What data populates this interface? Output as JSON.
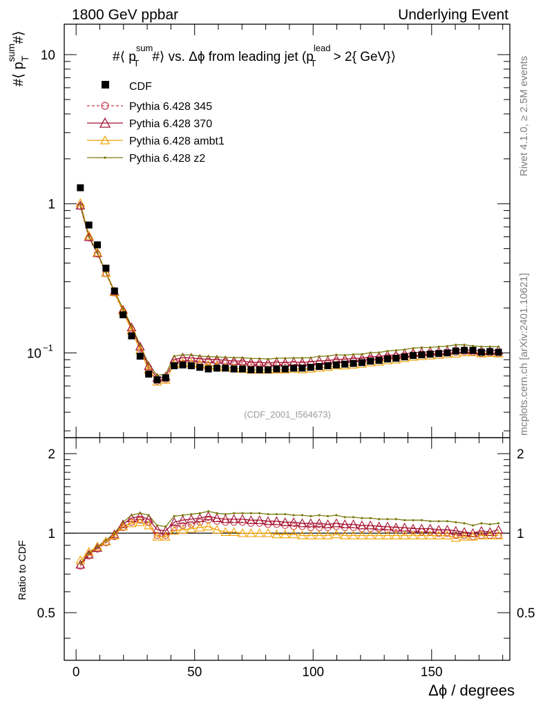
{
  "header": {
    "left": "1800 GeV ppbar",
    "right": "Underlying Event"
  },
  "side_labels": {
    "rivet": "Rivet 4.1.0, ≥ 2.5M events",
    "mcplots": "mcplots.cern.ch [arXiv:2401.10621]"
  },
  "chart_data": {
    "type": "line",
    "title": "#⟨ p_T^sum #⟩ vs. Δϕ from leading jet  (p_T^lead > 2{ GeV})",
    "title_parts": {
      "prefix": "#⟨ p",
      "sup1": "sum",
      "sub1": "T",
      "middle": "#⟩ vs. Δϕ from leading jet  (p",
      "sup2": "lead",
      "sub2": "T",
      "suffix": " > 2{ GeV}⟩"
    },
    "ylabel": {
      "prefix": "#⟨ p",
      "sup": "sum",
      "sub": "T",
      "suffix": "#⟩"
    },
    "xlabel": "Δϕ / degrees",
    "ratio_ylabel": "Ratio to CDF",
    "watermark": "(CDF_2001_I564673)",
    "scale": "log",
    "xlim": [
      -5,
      183
    ],
    "ylim": [
      0.027,
      16
    ],
    "ratio_ylim": [
      0.33,
      2.3
    ],
    "x_ticks": [
      "0",
      "50",
      "100",
      "150"
    ],
    "y_ticks": [
      {
        "base": "1",
        "exp": "0",
        "value": 10,
        "label": "10"
      },
      {
        "base": "1",
        "exp": "",
        "value": 1,
        "label": "1"
      },
      {
        "base": "10",
        "exp": "−1",
        "value": 0.1,
        "label": "10"
      }
    ],
    "ratio_ticks": [
      {
        "value": 2,
        "label": "2"
      },
      {
        "value": 1,
        "label": "1"
      },
      {
        "value": 0.5,
        "label": "0.5"
      }
    ],
    "x": [
      1.8,
      5.4,
      9.0,
      12.6,
      16.2,
      19.8,
      23.4,
      27.0,
      30.6,
      34.2,
      37.8,
      41.4,
      45.0,
      48.6,
      52.2,
      55.8,
      59.4,
      63.0,
      66.6,
      70.2,
      73.8,
      77.4,
      81.0,
      84.6,
      88.2,
      91.8,
      95.4,
      99.0,
      102.6,
      106.2,
      109.8,
      113.4,
      117.0,
      120.6,
      124.2,
      127.8,
      131.4,
      135.0,
      138.6,
      142.2,
      145.8,
      149.4,
      153.0,
      156.6,
      160.2,
      163.8,
      167.4,
      171.0,
      174.6,
      178.2
    ],
    "data_series": {
      "name": "CDF",
      "values": [
        1.28,
        0.72,
        0.53,
        0.37,
        0.26,
        0.18,
        0.13,
        0.095,
        0.072,
        0.066,
        0.068,
        0.082,
        0.083,
        0.082,
        0.08,
        0.078,
        0.079,
        0.079,
        0.078,
        0.078,
        0.077,
        0.077,
        0.077,
        0.078,
        0.078,
        0.079,
        0.079,
        0.08,
        0.081,
        0.082,
        0.083,
        0.084,
        0.085,
        0.086,
        0.088,
        0.089,
        0.091,
        0.092,
        0.094,
        0.096,
        0.097,
        0.098,
        0.099,
        0.1,
        0.103,
        0.104,
        0.104,
        0.101,
        0.102,
        0.101
      ]
    },
    "series": [
      {
        "name": "Pythia 6.428 345",
        "color": "#c2394a",
        "marker": "circle",
        "dashed": true,
        "ratios": [
          0.75,
          0.82,
          0.87,
          0.92,
          0.97,
          1.05,
          1.1,
          1.12,
          1.1,
          0.98,
          0.98,
          1.05,
          1.07,
          1.08,
          1.1,
          1.12,
          1.11,
          1.1,
          1.1,
          1.1,
          1.09,
          1.09,
          1.08,
          1.08,
          1.07,
          1.06,
          1.06,
          1.05,
          1.05,
          1.05,
          1.06,
          1.05,
          1.05,
          1.04,
          1.04,
          1.04,
          1.03,
          1.03,
          1.02,
          1.02,
          1.01,
          1.01,
          1.0,
          1.0,
          0.98,
          0.98,
          0.97,
          0.98,
          0.98,
          0.98
        ]
      },
      {
        "name": "Pythia 6.428 370",
        "color": "#a01030",
        "marker": "triangle",
        "dashed": false,
        "ratios": [
          0.76,
          0.83,
          0.88,
          0.93,
          0.99,
          1.08,
          1.14,
          1.16,
          1.13,
          1.03,
          1.02,
          1.1,
          1.12,
          1.13,
          1.14,
          1.16,
          1.14,
          1.13,
          1.13,
          1.13,
          1.12,
          1.12,
          1.11,
          1.11,
          1.1,
          1.1,
          1.09,
          1.09,
          1.09,
          1.08,
          1.09,
          1.08,
          1.08,
          1.07,
          1.07,
          1.06,
          1.06,
          1.05,
          1.05,
          1.04,
          1.04,
          1.04,
          1.03,
          1.03,
          1.02,
          1.01,
          1.0,
          1.02,
          1.01,
          1.03
        ]
      },
      {
        "name": "Pythia 6.428 ambt1",
        "color": "#f0a000",
        "marker": "triangle",
        "dashed": false,
        "ratios": [
          0.79,
          0.85,
          0.89,
          0.93,
          0.98,
          1.06,
          1.09,
          1.1,
          1.07,
          0.97,
          0.97,
          1.02,
          1.03,
          1.04,
          1.05,
          1.06,
          1.03,
          1.01,
          1.01,
          1.0,
          1.0,
          1.0,
          1.0,
          0.99,
          0.99,
          0.99,
          0.98,
          0.98,
          0.98,
          0.98,
          0.99,
          0.98,
          0.98,
          0.98,
          0.98,
          0.98,
          0.98,
          0.98,
          0.98,
          0.98,
          0.98,
          0.98,
          0.98,
          0.98,
          0.96,
          0.97,
          0.97,
          0.98,
          0.98,
          0.98
        ]
      },
      {
        "name": "Pythia 6.428 z2",
        "color": "#7a7a10",
        "marker": "dot",
        "dashed": false,
        "ratios": [
          0.77,
          0.84,
          0.89,
          0.94,
          1.0,
          1.1,
          1.17,
          1.19,
          1.17,
          1.07,
          1.06,
          1.16,
          1.17,
          1.18,
          1.19,
          1.21,
          1.19,
          1.18,
          1.19,
          1.19,
          1.19,
          1.19,
          1.18,
          1.18,
          1.18,
          1.17,
          1.17,
          1.16,
          1.17,
          1.16,
          1.17,
          1.15,
          1.15,
          1.14,
          1.14,
          1.13,
          1.13,
          1.13,
          1.12,
          1.12,
          1.12,
          1.11,
          1.11,
          1.11,
          1.1,
          1.09,
          1.07,
          1.09,
          1.08,
          1.09
        ]
      }
    ]
  }
}
